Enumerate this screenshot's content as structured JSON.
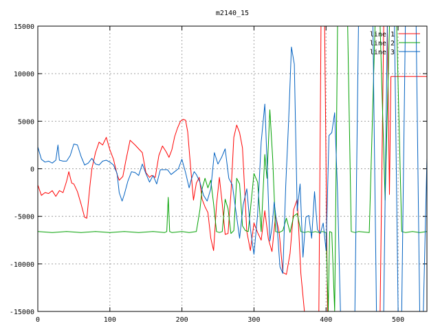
{
  "chart_data": {
    "type": "line",
    "title": "m2140_15",
    "xlabel": "",
    "ylabel": "",
    "xlim": [
      0,
      540
    ],
    "ylim": [
      -15000,
      15000
    ],
    "xticks": [
      0,
      100,
      200,
      300,
      400,
      500
    ],
    "xtick_labels": [
      "0",
      "100",
      "200",
      "300",
      "400",
      "500"
    ],
    "yticks": [
      -15000,
      -10000,
      -5000,
      0,
      5000,
      10000,
      15000
    ],
    "ytick_labels": [
      "-15000",
      "-10000",
      "-5000",
      "0",
      "5000",
      "10000",
      "15000"
    ],
    "grid": true,
    "legend_position": "top-right",
    "series": [
      {
        "name": "line 1",
        "color": "#ff0000",
        "x": [
          0,
          5,
          10,
          15,
          20,
          25,
          30,
          35,
          40,
          43,
          47,
          50,
          55,
          60,
          65,
          68,
          72,
          75,
          80,
          85,
          90,
          95,
          100,
          105,
          110,
          113,
          118,
          122,
          128,
          135,
          140,
          145,
          150,
          155,
          158,
          163,
          168,
          173,
          178,
          182,
          186,
          190,
          194,
          198,
          202,
          205,
          208,
          212,
          216,
          220,
          224,
          228,
          232,
          236,
          240,
          244,
          248,
          252,
          256,
          260,
          264,
          268,
          272,
          276,
          280,
          284,
          290,
          295,
          300,
          305,
          310,
          315,
          320,
          325,
          330,
          335,
          340,
          345,
          350,
          355,
          360,
          365,
          370,
          375,
          380,
          385,
          390,
          393,
          395,
          398,
          402,
          406,
          410,
          415,
          420,
          425,
          430,
          435,
          440,
          445,
          450,
          455,
          460,
          465,
          470,
          475,
          480,
          485,
          488,
          490,
          495,
          500,
          510,
          520,
          530,
          540
        ],
        "y": [
          -1700,
          -2800,
          -2500,
          -2600,
          -2300,
          -2900,
          -2300,
          -2500,
          -1300,
          -300,
          -1500,
          -1600,
          -2400,
          -3700,
          -5100,
          -5200,
          -2000,
          0,
          1700,
          2800,
          2500,
          3300,
          2000,
          1000,
          -600,
          -1200,
          -800,
          800,
          3000,
          2500,
          2100,
          1700,
          -400,
          -900,
          -700,
          -900,
          1400,
          2400,
          1800,
          1200,
          2000,
          3400,
          4300,
          5000,
          5200,
          5100,
          3900,
          200,
          -3300,
          -1500,
          -900,
          -3200,
          -4000,
          -4600,
          -7300,
          -8600,
          -3800,
          -900,
          -3700,
          -6900,
          -6800,
          -2600,
          3300,
          4600,
          3800,
          2200,
          -6600,
          -8600,
          -5700,
          -6700,
          -7500,
          -4400,
          -7400,
          -8700,
          -4900,
          -6700,
          -10900,
          -11100,
          -8900,
          -4300,
          -3200,
          -11000,
          -15000,
          -15000,
          -15000,
          -15000,
          -15000,
          15000,
          15000,
          15000,
          -15000,
          -15000,
          -15000,
          -15000,
          -15000,
          -15000,
          -15000,
          -15000,
          -15000,
          -15000,
          -15000,
          -15000,
          -15000,
          -15000,
          -15000,
          -15000,
          15000,
          15000,
          -2700,
          9700,
          9700,
          9700,
          9700,
          9700,
          9700,
          9700
        ]
      },
      {
        "name": "line 2",
        "color": "#00a000",
        "x": [
          0,
          20,
          40,
          60,
          80,
          100,
          120,
          140,
          160,
          176,
          179,
          181,
          183,
          186,
          200,
          210,
          220,
          225,
          228,
          232,
          236,
          240,
          244,
          248,
          252,
          256,
          260,
          264,
          268,
          272,
          276,
          280,
          284,
          288,
          292,
          296,
          300,
          305,
          310,
          315,
          318,
          322,
          326,
          330,
          335,
          340,
          345,
          350,
          355,
          360,
          365,
          370,
          375,
          380,
          385,
          390,
          395,
          400,
          403,
          405,
          408,
          412,
          416,
          420,
          430,
          435,
          440,
          445,
          460,
          468,
          475,
          482,
          488,
          492,
          498,
          505,
          510,
          520,
          530,
          540
        ],
        "y": [
          -6600,
          -6700,
          -6600,
          -6700,
          -6600,
          -6700,
          -6600,
          -6700,
          -6600,
          -6700,
          -6600,
          -3000,
          -6600,
          -6700,
          -6600,
          -6700,
          -6600,
          -4300,
          -2100,
          -1000,
          -2000,
          -1200,
          -3700,
          -6600,
          -6700,
          -6600,
          -3200,
          -4200,
          -6800,
          -6500,
          -1000,
          -1600,
          -6000,
          -6500,
          -6600,
          -3500,
          -500,
          -1400,
          -6600,
          1500,
          -1000,
          6200,
          1000,
          -6600,
          -6700,
          -6500,
          -5200,
          -6700,
          -5000,
          -4700,
          -6600,
          -6700,
          -6600,
          -6700,
          -6600,
          -6700,
          -6600,
          -6700,
          -15000,
          -6600,
          -6700,
          -15000,
          15000,
          15000,
          15000,
          -6600,
          -6700,
          -6600,
          -6700,
          15000,
          15000,
          -3300,
          15000,
          15000,
          15000,
          -6600,
          -6700,
          -6600,
          -6700,
          -6600
        ]
      },
      {
        "name": "line 3",
        "color": "#0060c0",
        "x": [
          0,
          5,
          10,
          15,
          20,
          25,
          28,
          30,
          35,
          40,
          45,
          50,
          55,
          60,
          65,
          70,
          75,
          80,
          85,
          90,
          95,
          100,
          105,
          110,
          113,
          117,
          120,
          125,
          130,
          135,
          140,
          145,
          150,
          155,
          160,
          165,
          170,
          175,
          180,
          185,
          190,
          195,
          200,
          205,
          210,
          213,
          217,
          220,
          225,
          230,
          235,
          240,
          245,
          250,
          255,
          260,
          265,
          270,
          275,
          280,
          285,
          290,
          295,
          300,
          305,
          310,
          315,
          318,
          322,
          325,
          328,
          332,
          336,
          340,
          344,
          348,
          352,
          356,
          360,
          364,
          368,
          372,
          376,
          380,
          384,
          388,
          392,
          396,
          400,
          404,
          408,
          412,
          416,
          420,
          425,
          430,
          435,
          440,
          445,
          450,
          455,
          460,
          465,
          470,
          475,
          480,
          485,
          490,
          495,
          500,
          505,
          510,
          515,
          520,
          525,
          530,
          535,
          540
        ],
        "y": [
          2300,
          1000,
          700,
          800,
          600,
          900,
          2500,
          900,
          800,
          800,
          1400,
          2600,
          2500,
          1300,
          400,
          600,
          1100,
          500,
          400,
          800,
          900,
          700,
          400,
          -500,
          -2500,
          -3400,
          -2700,
          -1300,
          -300,
          -400,
          -700,
          500,
          -500,
          -1400,
          -700,
          -1600,
          -100,
          -100,
          -100,
          -600,
          -300,
          0,
          1000,
          -400,
          -2000,
          -1100,
          -300,
          -600,
          -1400,
          -2800,
          -3400,
          -2100,
          1700,
          500,
          1200,
          2100,
          -1000,
          -1700,
          -4500,
          -7300,
          -3800,
          -2100,
          -6300,
          -9000,
          -4800,
          2800,
          6800,
          1000,
          -7600,
          -6200,
          -3500,
          -6000,
          -10300,
          -11000,
          -1800,
          5000,
          12800,
          11000,
          -4400,
          -1600,
          -9300,
          -5100,
          -4900,
          -7300,
          -2400,
          -6400,
          -6800,
          -5700,
          -8600,
          3500,
          3800,
          5900,
          -2500,
          -15000,
          -15000,
          -15000,
          -15000,
          -15000,
          15000,
          15000,
          15000,
          15000,
          15000,
          -15000,
          -15000,
          -15000,
          15000,
          15000,
          15000,
          -15000,
          -15000,
          15000,
          15000,
          15000,
          15000,
          -15000,
          -15000,
          1100
        ]
      }
    ]
  }
}
